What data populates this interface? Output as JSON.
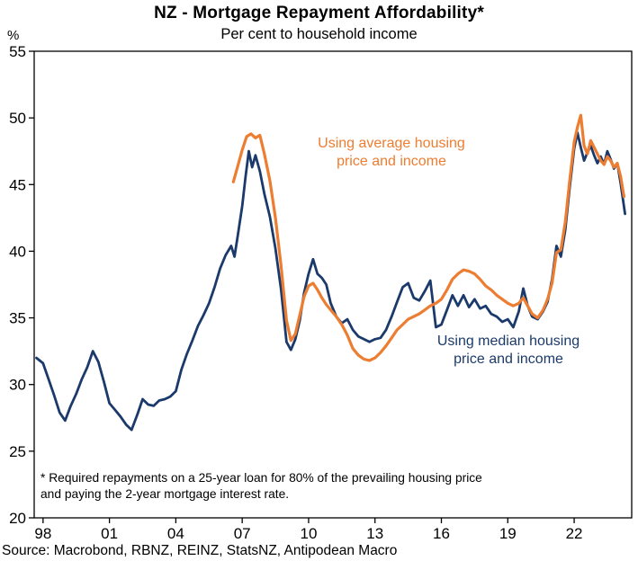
{
  "chart_data": {
    "type": "line",
    "title": "NZ - Mortgage Repayment Affordability*",
    "subtitle": "Per cent to household income",
    "y_unit": "%",
    "x_range": [
      1997.6,
      2024.6
    ],
    "y_range": [
      20,
      55
    ],
    "grid": false,
    "y_ticks": [
      20,
      25,
      30,
      35,
      40,
      45,
      50,
      55
    ],
    "x_ticks": [
      {
        "value": 1998,
        "label": "98"
      },
      {
        "value": 2001,
        "label": "01"
      },
      {
        "value": 2004,
        "label": "04"
      },
      {
        "value": 2007,
        "label": "07"
      },
      {
        "value": 2010,
        "label": "10"
      },
      {
        "value": 2013,
        "label": "13"
      },
      {
        "value": 2016,
        "label": "16"
      },
      {
        "value": 2019,
        "label": "19"
      },
      {
        "value": 2022,
        "label": "22"
      }
    ],
    "annotations": {
      "average_label": "Using average housing\nprice and income",
      "median_label": "Using median housing\nprice and income"
    },
    "footnote": "* Required repayments on a 25-year loan for 80% of the prevailing housing price\nand paying the 2-year mortgage interest rate.",
    "source": "Source: Macrobond, RBNZ, REINZ, StatsNZ, Antipodean Macro",
    "series": [
      {
        "key": "median",
        "name": "Using median housing price and income",
        "color": "#1b3a6b",
        "width": 2.8,
        "points": [
          [
            1997.7,
            32.0
          ],
          [
            1998.0,
            31.6
          ],
          [
            1998.25,
            30.4
          ],
          [
            1998.5,
            29.2
          ],
          [
            1998.75,
            27.9
          ],
          [
            1999.0,
            27.3
          ],
          [
            1999.25,
            28.4
          ],
          [
            1999.5,
            29.3
          ],
          [
            1999.75,
            30.4
          ],
          [
            2000.0,
            31.3
          ],
          [
            2000.25,
            32.5
          ],
          [
            2000.5,
            31.7
          ],
          [
            2000.75,
            30.2
          ],
          [
            2001.0,
            28.6
          ],
          [
            2001.25,
            28.1
          ],
          [
            2001.5,
            27.6
          ],
          [
            2001.75,
            27.0
          ],
          [
            2002.0,
            26.6
          ],
          [
            2002.25,
            27.7
          ],
          [
            2002.5,
            28.9
          ],
          [
            2002.75,
            28.5
          ],
          [
            2003.0,
            28.4
          ],
          [
            2003.25,
            28.8
          ],
          [
            2003.5,
            28.9
          ],
          [
            2003.75,
            29.1
          ],
          [
            2004.0,
            29.5
          ],
          [
            2004.25,
            31.1
          ],
          [
            2004.5,
            32.3
          ],
          [
            2004.75,
            33.3
          ],
          [
            2005.0,
            34.4
          ],
          [
            2005.25,
            35.2
          ],
          [
            2005.5,
            36.1
          ],
          [
            2005.75,
            37.3
          ],
          [
            2006.0,
            38.7
          ],
          [
            2006.25,
            39.7
          ],
          [
            2006.5,
            40.4
          ],
          [
            2006.65,
            39.6
          ],
          [
            2006.8,
            41.2
          ],
          [
            2007.0,
            43.4
          ],
          [
            2007.15,
            45.6
          ],
          [
            2007.3,
            47.5
          ],
          [
            2007.45,
            46.3
          ],
          [
            2007.6,
            47.2
          ],
          [
            2007.8,
            46.0
          ],
          [
            2008.0,
            44.3
          ],
          [
            2008.25,
            42.6
          ],
          [
            2008.5,
            40.2
          ],
          [
            2008.75,
            37.2
          ],
          [
            2009.0,
            33.2
          ],
          [
            2009.2,
            32.6
          ],
          [
            2009.4,
            33.4
          ],
          [
            2009.6,
            34.8
          ],
          [
            2009.8,
            36.9
          ],
          [
            2010.0,
            38.3
          ],
          [
            2010.2,
            39.4
          ],
          [
            2010.4,
            38.3
          ],
          [
            2010.6,
            38.0
          ],
          [
            2010.8,
            37.5
          ],
          [
            2011.0,
            36.1
          ],
          [
            2011.25,
            35.1
          ],
          [
            2011.5,
            34.6
          ],
          [
            2011.75,
            34.9
          ],
          [
            2012.0,
            34.1
          ],
          [
            2012.25,
            33.6
          ],
          [
            2012.5,
            33.4
          ],
          [
            2012.75,
            33.2
          ],
          [
            2013.0,
            33.4
          ],
          [
            2013.25,
            33.5
          ],
          [
            2013.5,
            34.1
          ],
          [
            2013.75,
            35.1
          ],
          [
            2014.0,
            36.2
          ],
          [
            2014.25,
            37.3
          ],
          [
            2014.5,
            37.6
          ],
          [
            2014.75,
            36.5
          ],
          [
            2015.0,
            36.3
          ],
          [
            2015.25,
            37.0
          ],
          [
            2015.5,
            37.8
          ],
          [
            2015.75,
            34.3
          ],
          [
            2016.0,
            34.5
          ],
          [
            2016.25,
            35.6
          ],
          [
            2016.5,
            36.7
          ],
          [
            2016.75,
            35.9
          ],
          [
            2017.0,
            36.7
          ],
          [
            2017.25,
            35.8
          ],
          [
            2017.5,
            36.4
          ],
          [
            2017.75,
            35.7
          ],
          [
            2018.0,
            35.9
          ],
          [
            2018.25,
            35.3
          ],
          [
            2018.5,
            35.1
          ],
          [
            2018.75,
            34.7
          ],
          [
            2019.0,
            34.9
          ],
          [
            2019.25,
            34.3
          ],
          [
            2019.5,
            35.5
          ],
          [
            2019.7,
            37.2
          ],
          [
            2019.9,
            35.9
          ],
          [
            2020.1,
            35.1
          ],
          [
            2020.35,
            34.9
          ],
          [
            2020.6,
            35.5
          ],
          [
            2020.8,
            36.2
          ],
          [
            2021.0,
            37.9
          ],
          [
            2021.2,
            40.4
          ],
          [
            2021.4,
            39.6
          ],
          [
            2021.6,
            41.6
          ],
          [
            2021.8,
            44.8
          ],
          [
            2022.0,
            47.7
          ],
          [
            2022.15,
            48.9
          ],
          [
            2022.3,
            47.8
          ],
          [
            2022.45,
            46.8
          ],
          [
            2022.6,
            47.4
          ],
          [
            2022.75,
            47.9
          ],
          [
            2022.9,
            47.2
          ],
          [
            2023.05,
            46.6
          ],
          [
            2023.2,
            47.1
          ],
          [
            2023.35,
            46.5
          ],
          [
            2023.5,
            47.5
          ],
          [
            2023.65,
            46.9
          ],
          [
            2023.8,
            46.2
          ],
          [
            2023.95,
            46.6
          ],
          [
            2024.1,
            45.1
          ],
          [
            2024.3,
            42.8
          ]
        ]
      },
      {
        "key": "average",
        "name": "Using average housing price and income",
        "color": "#ed7d31",
        "width": 3.2,
        "points": [
          [
            2006.6,
            45.2
          ],
          [
            2006.8,
            46.4
          ],
          [
            2007.0,
            47.6
          ],
          [
            2007.2,
            48.6
          ],
          [
            2007.4,
            48.8
          ],
          [
            2007.6,
            48.5
          ],
          [
            2007.8,
            48.7
          ],
          [
            2008.0,
            47.3
          ],
          [
            2008.25,
            45.3
          ],
          [
            2008.5,
            42.5
          ],
          [
            2008.75,
            39.0
          ],
          [
            2009.0,
            34.8
          ],
          [
            2009.2,
            33.3
          ],
          [
            2009.4,
            33.8
          ],
          [
            2009.6,
            35.2
          ],
          [
            2009.8,
            36.6
          ],
          [
            2010.0,
            37.4
          ],
          [
            2010.2,
            37.6
          ],
          [
            2010.4,
            37.1
          ],
          [
            2010.6,
            36.5
          ],
          [
            2010.8,
            36.0
          ],
          [
            2011.0,
            35.6
          ],
          [
            2011.25,
            35.1
          ],
          [
            2011.5,
            34.5
          ],
          [
            2011.75,
            33.7
          ],
          [
            2012.0,
            32.7
          ],
          [
            2012.25,
            32.2
          ],
          [
            2012.5,
            31.9
          ],
          [
            2012.75,
            31.8
          ],
          [
            2013.0,
            32.0
          ],
          [
            2013.25,
            32.4
          ],
          [
            2013.5,
            32.9
          ],
          [
            2013.75,
            33.5
          ],
          [
            2014.0,
            34.1
          ],
          [
            2014.25,
            34.5
          ],
          [
            2014.5,
            34.9
          ],
          [
            2014.75,
            35.1
          ],
          [
            2015.0,
            35.3
          ],
          [
            2015.25,
            35.6
          ],
          [
            2015.5,
            35.9
          ],
          [
            2015.75,
            36.1
          ],
          [
            2016.0,
            36.4
          ],
          [
            2016.25,
            37.1
          ],
          [
            2016.5,
            37.9
          ],
          [
            2016.75,
            38.3
          ],
          [
            2017.0,
            38.6
          ],
          [
            2017.25,
            38.5
          ],
          [
            2017.5,
            38.3
          ],
          [
            2017.75,
            37.9
          ],
          [
            2018.0,
            37.4
          ],
          [
            2018.25,
            37.1
          ],
          [
            2018.5,
            36.7
          ],
          [
            2018.75,
            36.4
          ],
          [
            2019.0,
            36.1
          ],
          [
            2019.25,
            35.9
          ],
          [
            2019.5,
            36.1
          ],
          [
            2019.7,
            36.5
          ],
          [
            2019.9,
            35.9
          ],
          [
            2020.1,
            35.3
          ],
          [
            2020.35,
            35.0
          ],
          [
            2020.6,
            35.6
          ],
          [
            2020.8,
            36.4
          ],
          [
            2021.0,
            37.6
          ],
          [
            2021.2,
            39.9
          ],
          [
            2021.4,
            40.1
          ],
          [
            2021.6,
            42.2
          ],
          [
            2021.8,
            45.3
          ],
          [
            2022.0,
            48.2
          ],
          [
            2022.15,
            49.3
          ],
          [
            2022.3,
            50.2
          ],
          [
            2022.45,
            47.9
          ],
          [
            2022.6,
            47.3
          ],
          [
            2022.75,
            48.3
          ],
          [
            2022.9,
            47.8
          ],
          [
            2023.05,
            47.3
          ],
          [
            2023.2,
            46.8
          ],
          [
            2023.35,
            46.5
          ],
          [
            2023.5,
            47.1
          ],
          [
            2023.65,
            46.8
          ],
          [
            2023.8,
            46.3
          ],
          [
            2023.95,
            46.6
          ],
          [
            2024.1,
            45.6
          ],
          [
            2024.25,
            44.1
          ]
        ]
      }
    ]
  }
}
